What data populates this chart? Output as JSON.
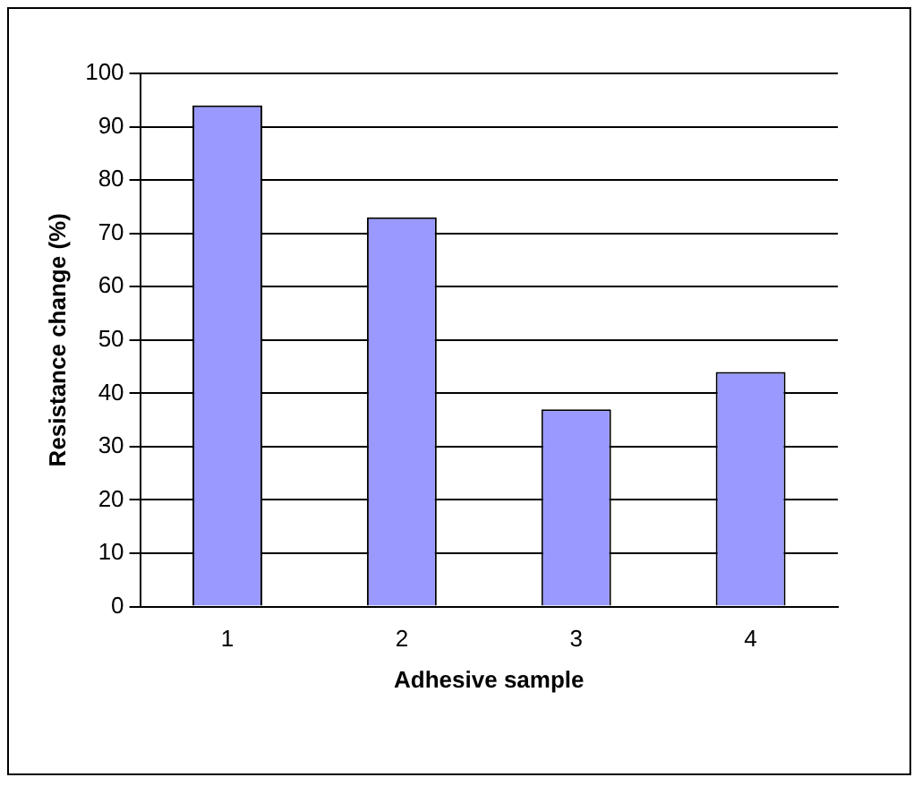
{
  "chart_data": {
    "type": "bar",
    "xlabel": "Adhesive sample",
    "ylabel": "Resistance change (%)",
    "categories": [
      "1",
      "2",
      "3",
      "4"
    ],
    "values": [
      94,
      73,
      37,
      44
    ],
    "color": "#9999ff",
    "ylim": [
      0,
      100
    ],
    "yticks": [
      0,
      10,
      20,
      30,
      40,
      50,
      60,
      70,
      80,
      90,
      100
    ],
    "grid": "y"
  }
}
